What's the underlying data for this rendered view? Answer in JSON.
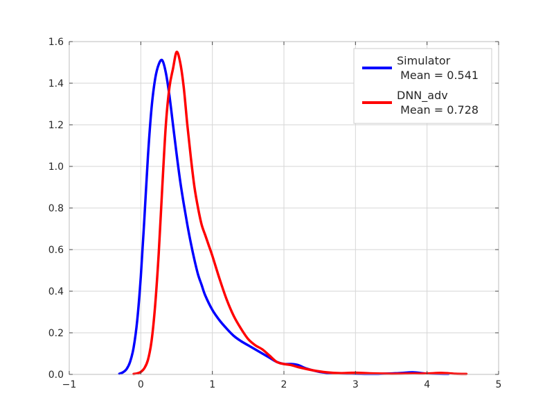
{
  "chart_data": {
    "type": "line",
    "title": "",
    "xlabel": "",
    "ylabel": "",
    "xlim": [
      -1,
      5
    ],
    "ylim": [
      0,
      1.6
    ],
    "xticks": [
      "−1",
      "0",
      "1",
      "2",
      "3",
      "4",
      "5"
    ],
    "yticks": [
      "0.0",
      "0.2",
      "0.4",
      "0.6",
      "0.8",
      "1.0",
      "1.2",
      "1.4",
      "1.6"
    ],
    "grid": true,
    "legend_position": "top-right",
    "series": [
      {
        "name": "Simulator",
        "legend_line2": " Mean = 0.541",
        "color": "#0000ff",
        "points": [
          [
            -0.3,
            0.003
          ],
          [
            -0.25,
            0.01
          ],
          [
            -0.2,
            0.025
          ],
          [
            -0.15,
            0.06
          ],
          [
            -0.1,
            0.13
          ],
          [
            -0.05,
            0.26
          ],
          [
            0.0,
            0.47
          ],
          [
            0.05,
            0.75
          ],
          [
            0.1,
            1.05
          ],
          [
            0.15,
            1.28
          ],
          [
            0.2,
            1.42
          ],
          [
            0.25,
            1.49
          ],
          [
            0.3,
            1.51
          ],
          [
            0.35,
            1.45
          ],
          [
            0.4,
            1.34
          ],
          [
            0.45,
            1.2
          ],
          [
            0.5,
            1.06
          ],
          [
            0.55,
            0.93
          ],
          [
            0.6,
            0.82
          ],
          [
            0.65,
            0.72
          ],
          [
            0.7,
            0.63
          ],
          [
            0.75,
            0.55
          ],
          [
            0.8,
            0.48
          ],
          [
            0.85,
            0.43
          ],
          [
            0.9,
            0.38
          ],
          [
            1.0,
            0.31
          ],
          [
            1.1,
            0.26
          ],
          [
            1.2,
            0.22
          ],
          [
            1.3,
            0.185
          ],
          [
            1.4,
            0.16
          ],
          [
            1.5,
            0.14
          ],
          [
            1.6,
            0.12
          ],
          [
            1.7,
            0.1
          ],
          [
            1.8,
            0.08
          ],
          [
            1.9,
            0.06
          ],
          [
            2.0,
            0.05
          ],
          [
            2.1,
            0.05
          ],
          [
            2.2,
            0.045
          ],
          [
            2.3,
            0.03
          ],
          [
            2.5,
            0.012
          ],
          [
            2.7,
            0.005
          ],
          [
            3.0,
            0.003
          ],
          [
            3.3,
            0.002
          ],
          [
            3.6,
            0.006
          ],
          [
            3.8,
            0.01
          ],
          [
            4.0,
            0.004
          ],
          [
            4.3,
            0.002
          ]
        ]
      },
      {
        "name": "DNN_adv",
        "legend_line2": " Mean = 0.728",
        "color": "#ff0000",
        "points": [
          [
            -0.1,
            0.002
          ],
          [
            -0.05,
            0.005
          ],
          [
            0.0,
            0.012
          ],
          [
            0.05,
            0.03
          ],
          [
            0.1,
            0.07
          ],
          [
            0.15,
            0.16
          ],
          [
            0.2,
            0.33
          ],
          [
            0.25,
            0.58
          ],
          [
            0.3,
            0.9
          ],
          [
            0.35,
            1.2
          ],
          [
            0.4,
            1.38
          ],
          [
            0.45,
            1.47
          ],
          [
            0.5,
            1.55
          ],
          [
            0.55,
            1.5
          ],
          [
            0.6,
            1.38
          ],
          [
            0.65,
            1.2
          ],
          [
            0.7,
            1.04
          ],
          [
            0.75,
            0.9
          ],
          [
            0.8,
            0.8
          ],
          [
            0.85,
            0.72
          ],
          [
            0.9,
            0.67
          ],
          [
            0.95,
            0.62
          ],
          [
            1.0,
            0.57
          ],
          [
            1.1,
            0.46
          ],
          [
            1.2,
            0.36
          ],
          [
            1.3,
            0.28
          ],
          [
            1.4,
            0.22
          ],
          [
            1.5,
            0.17
          ],
          [
            1.6,
            0.14
          ],
          [
            1.7,
            0.12
          ],
          [
            1.8,
            0.09
          ],
          [
            1.9,
            0.06
          ],
          [
            2.0,
            0.05
          ],
          [
            2.1,
            0.045
          ],
          [
            2.2,
            0.035
          ],
          [
            2.4,
            0.02
          ],
          [
            2.6,
            0.01
          ],
          [
            2.8,
            0.006
          ],
          [
            3.0,
            0.008
          ],
          [
            3.2,
            0.005
          ],
          [
            3.5,
            0.003
          ],
          [
            3.8,
            0.004
          ],
          [
            4.0,
            0.004
          ],
          [
            4.2,
            0.007
          ],
          [
            4.4,
            0.003
          ],
          [
            4.55,
            0.002
          ]
        ]
      }
    ]
  }
}
